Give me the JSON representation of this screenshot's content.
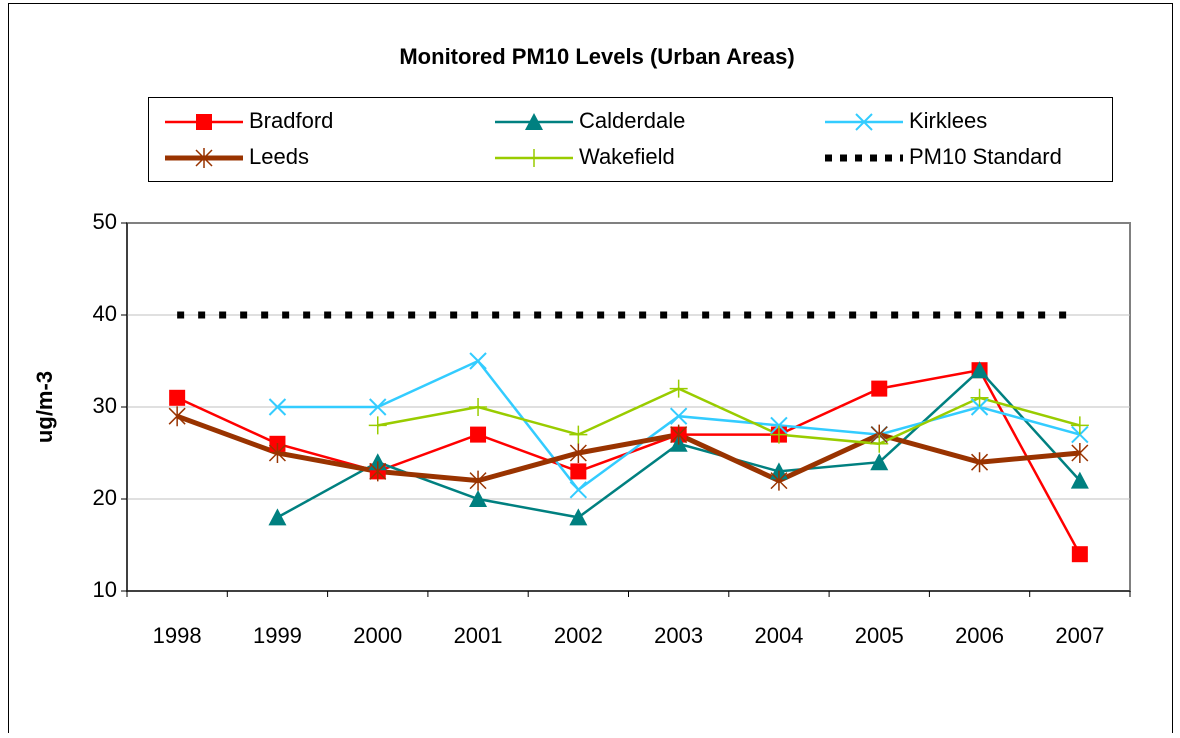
{
  "chart_data": {
    "type": "line",
    "title": "Monitored PM10 Levels (Urban Areas)",
    "y_label": "ug/m-3",
    "categories": [
      "1998",
      "1999",
      "2000",
      "2001",
      "2002",
      "2003",
      "2004",
      "2005",
      "2006",
      "2007"
    ],
    "series": [
      {
        "name": "Bradford",
        "color": "#ff0000",
        "marker": "square",
        "values": [
          31,
          26,
          23,
          27,
          23,
          27,
          27,
          32,
          34,
          14
        ]
      },
      {
        "name": "Calderdale",
        "color": "#008080",
        "marker": "triangle",
        "values": [
          null,
          18,
          24,
          20,
          18,
          26,
          23,
          24,
          34,
          22
        ]
      },
      {
        "name": "Kirklees",
        "color": "#33ccff",
        "marker": "x",
        "values": [
          null,
          30,
          30,
          35,
          21,
          29,
          28,
          27,
          30,
          27
        ]
      },
      {
        "name": "Leeds",
        "color": "#993300",
        "marker": "star",
        "values": [
          29,
          25,
          23,
          22,
          25,
          27,
          22,
          27,
          24,
          25
        ]
      },
      {
        "name": "Wakefield",
        "color": "#99cc00",
        "marker": "plus",
        "values": [
          null,
          null,
          28,
          30,
          27,
          32,
          27,
          26,
          31,
          28
        ]
      },
      {
        "name": "PM10 Standard",
        "color": "#000000",
        "marker": "none",
        "dotted": true,
        "values": [
          40,
          40,
          40,
          40,
          40,
          40,
          40,
          40,
          40,
          40
        ]
      }
    ],
    "ylim": [
      10,
      50
    ],
    "yticks": [
      10,
      20,
      30,
      40,
      50
    ],
    "grid": true
  }
}
